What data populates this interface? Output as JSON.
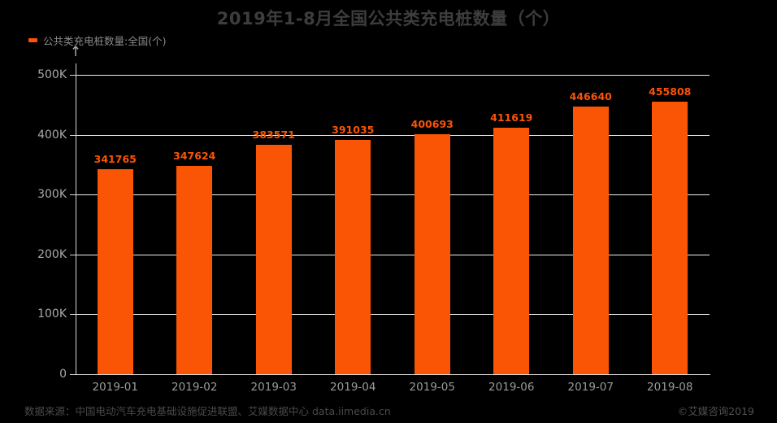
{
  "title": "2019年1-8月全国公共类充电桩数量（个）",
  "legend": {
    "label": "公共类充电桩数量:全国(个)",
    "marker_color": "#FA5405"
  },
  "y_axis": {
    "arrow": "↑",
    "max": 500000,
    "ticks": [
      {
        "label": "0",
        "value": 0
      },
      {
        "label": "100K",
        "value": 100000
      },
      {
        "label": "200K",
        "value": 200000
      },
      {
        "label": "300K",
        "value": 300000
      },
      {
        "label": "400K",
        "value": 400000
      },
      {
        "label": "500K",
        "value": 500000
      }
    ]
  },
  "chart_data": {
    "type": "bar",
    "title": "2019年1-8月全国公共类充电桩数量（个）",
    "series_name": "公共类充电桩数量:全国(个)",
    "categories": [
      "2019-01",
      "2019-02",
      "2019-03",
      "2019-04",
      "2019-05",
      "2019-06",
      "2019-07",
      "2019-08"
    ],
    "values": [
      341765,
      347624,
      383571,
      391035,
      400693,
      411619,
      446640,
      455808
    ],
    "xlabel": "",
    "ylabel": "",
    "ylim": [
      0,
      500000
    ],
    "y_tick_labels": [
      "0",
      "100K",
      "200K",
      "300K",
      "400K",
      "500K"
    ],
    "grid": true,
    "legend_position": "top-left",
    "bar_color": "#FA5405",
    "value_labels_shown": true
  },
  "footer": {
    "source": "数据来源：中国电动汽车充电基础设施促进联盟、艾媒数据中心 data.iimedia.cn",
    "copyright": "©艾媒咨询2019"
  },
  "colors": {
    "background": "#000000",
    "bar": "#FA5405",
    "value_label": "#FA5405",
    "grid_line": "#ECECEA",
    "axis_line": "#D8D8D8",
    "tick_label": "#A9A9A9",
    "title_text": "#3D3D3D",
    "legend_text": "#8A8A8A",
    "footer_text": "#4A4A4A"
  }
}
